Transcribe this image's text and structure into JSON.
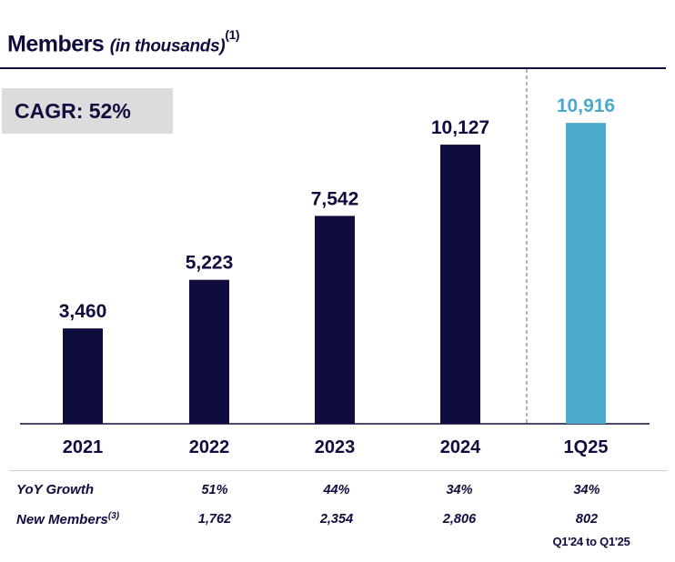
{
  "title": {
    "main": "Members",
    "sub": "(in thousands)",
    "footnote": "(1)"
  },
  "cagr": "CAGR: 52%",
  "chart_data": {
    "type": "bar",
    "categories": [
      "2021",
      "2022",
      "2023",
      "2024",
      "1Q25"
    ],
    "values": [
      3460,
      5223,
      7542,
      10127,
      10916
    ],
    "value_labels": [
      "3,460",
      "5,223",
      "7,542",
      "10,127",
      "10,916"
    ],
    "ylim": [
      0,
      13000
    ],
    "xlabel": "",
    "ylabel": "",
    "colors": [
      "#0f0c3e",
      "#0f0c3e",
      "#0f0c3e",
      "#0f0c3e",
      "#4ba9cb"
    ],
    "separator_before": "1Q25"
  },
  "table": {
    "rows": [
      {
        "label": "YoY Growth",
        "footnote": "",
        "values": [
          "51%",
          "44%",
          "34%",
          "34%"
        ]
      },
      {
        "label": "New Members",
        "footnote": "(3)",
        "values": [
          "1,762",
          "2,354",
          "2,806",
          "802"
        ]
      }
    ],
    "note": "Q1'24 to Q1'25"
  },
  "colors": {
    "navy": "#0f0c3e",
    "highlight": "#4ba9cb",
    "cagr_bg": "#dcdcdc"
  }
}
